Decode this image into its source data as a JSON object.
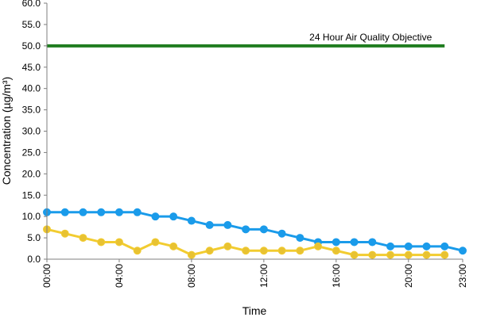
{
  "chart_data": {
    "type": "line",
    "title": "",
    "xlabel": "Time",
    "ylabel": "Concentration (µg/m³)",
    "ylim": [
      0,
      60
    ],
    "y_tick_step": 5,
    "y_tick_decimals": 1,
    "grid": false,
    "x_hours": [
      0,
      1,
      2,
      3,
      4,
      5,
      6,
      7,
      8,
      9,
      10,
      11,
      12,
      13,
      14,
      15,
      16,
      17,
      18,
      19,
      20,
      21,
      22,
      23
    ],
    "x_tick_labels": [
      {
        "hour": 0,
        "label": "00:00"
      },
      {
        "hour": 4,
        "label": "04:00"
      },
      {
        "hour": 8,
        "label": "08:00"
      },
      {
        "hour": 12,
        "label": "12:00"
      },
      {
        "hour": 16,
        "label": "16:00"
      },
      {
        "hour": 20,
        "label": "20:00"
      },
      {
        "hour": 23,
        "label": "23:00"
      }
    ],
    "series": [
      {
        "color": "#1a9bea",
        "marker_color": "#1a9bea",
        "values": [
          11,
          11,
          11,
          11,
          11,
          11,
          10,
          10,
          9,
          8,
          8,
          7,
          7,
          6,
          5,
          4,
          4,
          4,
          4,
          3,
          3,
          3,
          3,
          2
        ]
      },
      {
        "color": "#f2cc30",
        "marker_color": "#e8c232",
        "values": [
          7,
          6,
          5,
          4,
          4,
          2,
          4,
          3,
          1,
          2,
          3,
          2,
          2,
          2,
          2,
          3,
          2,
          1,
          1,
          1,
          1,
          1,
          1,
          null
        ]
      }
    ],
    "reference_line": {
      "value": 50,
      "label": "24 Hour Air Quality Objective",
      "color": "#1f7d1f",
      "x_end_hour": 22
    }
  }
}
